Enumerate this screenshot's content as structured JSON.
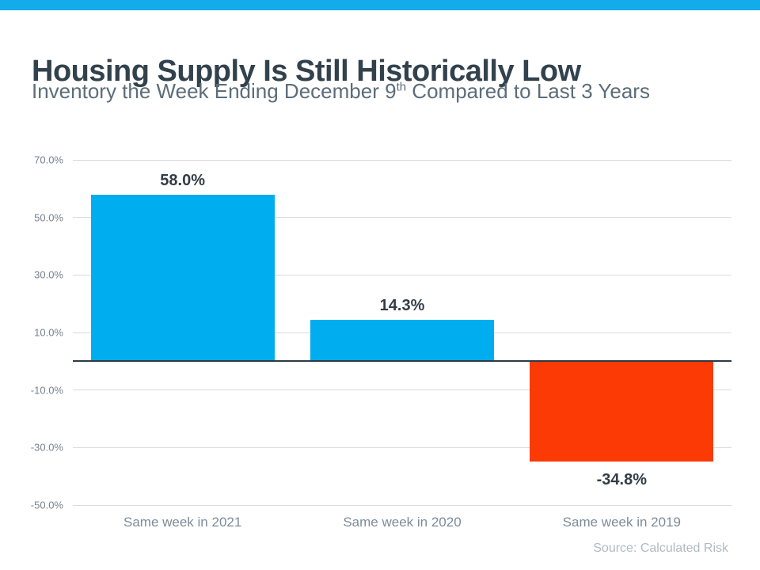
{
  "theme": {
    "accent_color": "#14abeb",
    "title_color": "#32424d",
    "subtitle_color": "#5c6d79",
    "positive_bar_color": "#00adee",
    "negative_bar_color": "#fb3a05",
    "zero_line_color": "#2b3b47",
    "gridline_color": "#d9dbdd"
  },
  "header": {
    "title": "Housing Supply Is Still Historically Low",
    "subtitle_parts": {
      "before_sup": "Inventory the Week Ending December 9",
      "sup": "th",
      "after_sup": " Compared to Last 3 Years"
    }
  },
  "chart_data": {
    "type": "bar",
    "title": "Housing Supply Is Still Historically Low",
    "subtitle": "Inventory the Week Ending December 9th Compared to Last 3 Years",
    "categories": [
      "Same week in 2021",
      "Same week in 2020",
      "Same week in 2019"
    ],
    "values": [
      58.0,
      14.3,
      -34.8
    ],
    "data_labels": [
      "58.0%",
      "14.3%",
      "-34.8%"
    ],
    "bar_colors": [
      "#00adee",
      "#00adee",
      "#fb3a05"
    ],
    "ylim": [
      -50,
      70
    ],
    "ytick_values": [
      70,
      50,
      30,
      10,
      -10,
      -30,
      -50
    ],
    "ytick_labels": [
      "70.0%",
      "50.0%",
      "30.0%",
      "10.0%",
      "-10.0%",
      "-30.0%",
      "-50.0%"
    ],
    "grid": true,
    "legend": false,
    "source": "Source: Calculated Risk"
  }
}
